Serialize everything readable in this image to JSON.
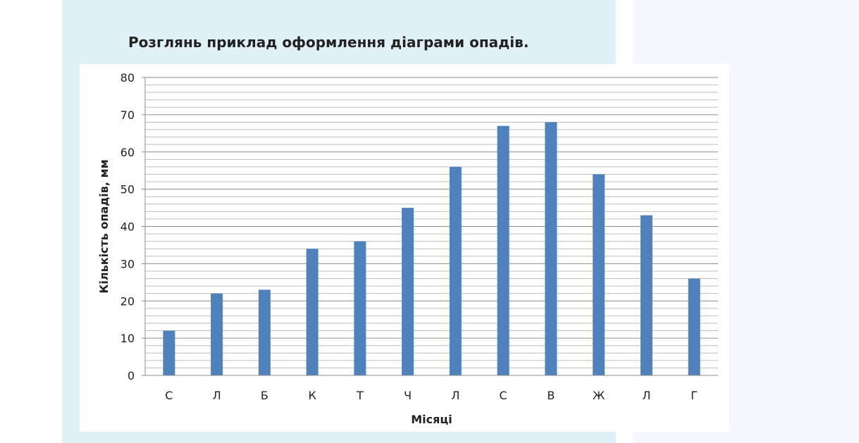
{
  "heading": "Розглянь приклад оформлення діаграми опадів.",
  "colors": {
    "panel_left": "#dff0f7",
    "panel_right": "#f4f8fd",
    "bar": "#4f81bd",
    "grid": "#bfbfbf"
  },
  "chart_data": {
    "type": "bar",
    "title": "",
    "xlabel": "Місяці",
    "ylabel": "Кількість опадів,  мм",
    "categories": [
      "С",
      "Л",
      "Б",
      "К",
      "Т",
      "Ч",
      "Л",
      "С",
      "В",
      "Ж",
      "Л",
      "Г"
    ],
    "values": [
      12,
      22,
      23,
      34,
      36,
      45,
      56,
      67,
      68,
      54,
      43,
      26
    ],
    "ylim": [
      0,
      80
    ],
    "yticks": [
      0,
      10,
      20,
      30,
      40,
      50,
      60,
      70,
      80
    ],
    "grid": true,
    "legend": false
  }
}
